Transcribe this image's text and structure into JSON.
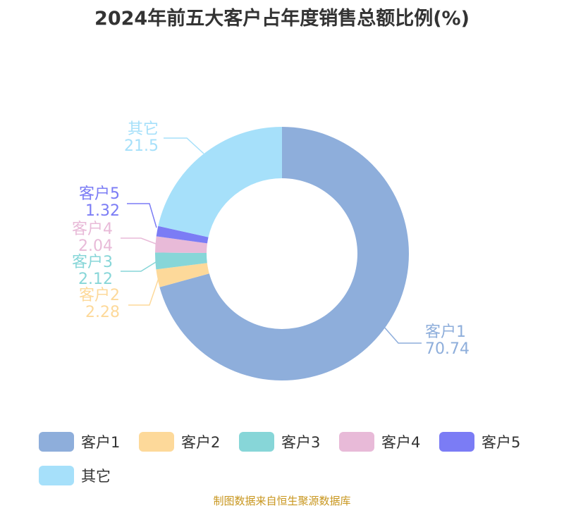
{
  "chart_data": {
    "type": "pie",
    "variant": "donut",
    "title": "2024年前五大客户占年度销售总额比例(%)",
    "categories": [
      "客户1",
      "客户2",
      "客户3",
      "客户4",
      "客户5",
      "其它"
    ],
    "values": [
      70.74,
      2.28,
      2.12,
      2.04,
      1.32,
      21.5
    ],
    "value_labels": [
      "70.74",
      "2.28",
      "2.12",
      "2.04",
      "1.32",
      "21.5"
    ],
    "colors": [
      "#8eaedb",
      "#fdd99a",
      "#87d6d8",
      "#e8bad8",
      "#7b7cf5",
      "#a6e0fa"
    ],
    "legend_position": "bottom"
  },
  "source": "制图数据来自恒生聚源数据库"
}
